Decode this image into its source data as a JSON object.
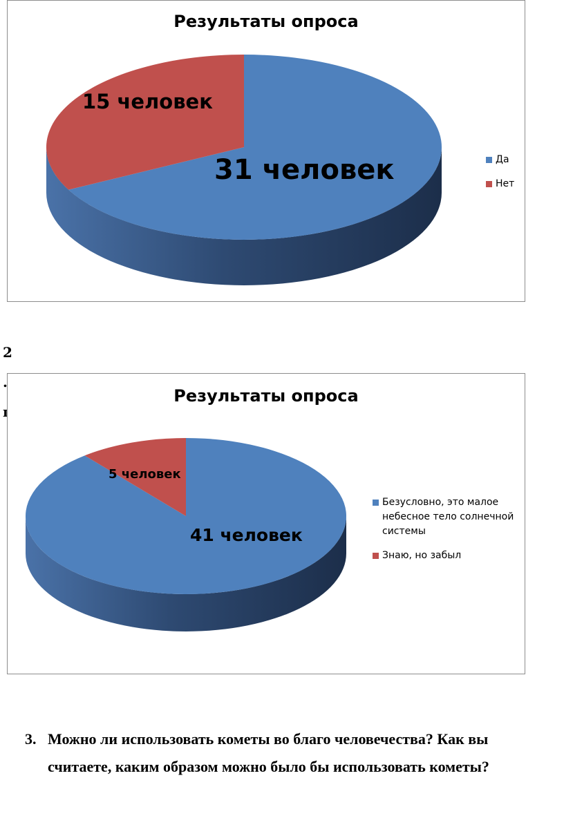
{
  "colors": {
    "blue": "#4f81bd",
    "blue_dark": "#1f3250",
    "red": "#c0504d",
    "red_dark": "#7a2f2d",
    "border": "#8c8c8c"
  },
  "chart_data": [
    {
      "type": "pie",
      "style": "3d",
      "title": "Результаты опроса",
      "categories": [
        "Да",
        "Нет"
      ],
      "values": [
        31,
        15
      ],
      "data_labels": [
        "31 человек",
        "15 человек"
      ],
      "legend_position": "right"
    },
    {
      "type": "pie",
      "style": "3d",
      "title": "Результаты опроса",
      "categories": [
        "Безусловно, это малое небесное тело солнечной системы",
        "Знаю, но забыл"
      ],
      "values": [
        41,
        5
      ],
      "data_labels": [
        "41 человек",
        "5 человек"
      ],
      "legend_position": "right"
    }
  ],
  "stray": {
    "num": "2",
    "dot": ".",
    "n": "п"
  },
  "question": {
    "number": "3.",
    "text": "Можно ли использовать кометы во благо человечества? Как вы считаете, каким образом можно было бы использовать кометы?"
  }
}
